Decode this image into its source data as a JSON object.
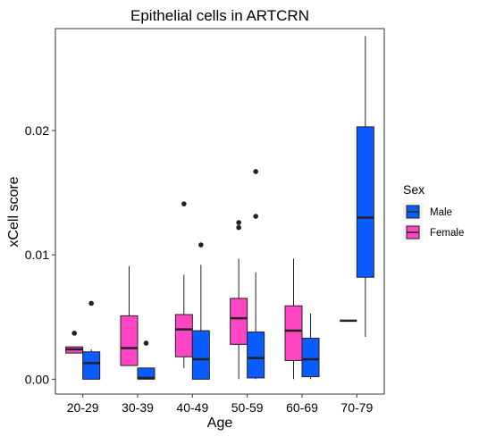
{
  "chart_data": {
    "type": "boxplot",
    "title": "Epithelial cells in ARTCRN",
    "xlabel": "Age",
    "ylabel": "xCell score",
    "categories": [
      "20-29",
      "30-39",
      "40-49",
      "50-59",
      "60-69",
      "70-79"
    ],
    "ylim": [
      -0.0012,
      0.0282
    ],
    "yticks": [
      0.0,
      0.01,
      0.02
    ],
    "ytick_labels": [
      "0.00",
      "0.01",
      "0.02"
    ],
    "grid": false,
    "legend": {
      "title": "Sex",
      "position": "right",
      "entries": [
        {
          "name": "Male",
          "color": "#0a5cff"
        },
        {
          "name": "Female",
          "color": "#ff44c4"
        }
      ]
    },
    "series": [
      {
        "name": "Female",
        "color": "#ff44c4",
        "boxes": [
          {
            "category": "20-29",
            "min": 0.0021,
            "q1": 0.0021,
            "median": 0.0024,
            "q3": 0.0026,
            "max": 0.0026,
            "outliers": [
              0.0037
            ]
          },
          {
            "category": "30-39",
            "min": 0.0011,
            "q1": 0.0011,
            "median": 0.0025,
            "q3": 0.0051,
            "max": 0.0091,
            "outliers": []
          },
          {
            "category": "40-49",
            "min": 0.0009,
            "q1": 0.0018,
            "median": 0.004,
            "q3": 0.0052,
            "max": 0.0084,
            "outliers": [
              0.0141
            ]
          },
          {
            "category": "50-59",
            "min": 0.0,
            "q1": 0.0028,
            "median": 0.0049,
            "q3": 0.0065,
            "max": 0.0097,
            "outliers": [
              0.0122,
              0.0126
            ]
          },
          {
            "category": "60-69",
            "min": 0.0,
            "q1": 0.0015,
            "median": 0.0039,
            "q3": 0.0059,
            "max": 0.0097,
            "outliers": []
          }
        ]
      },
      {
        "name": "Male",
        "color": "#0a5cff",
        "boxes": [
          {
            "category": "20-29",
            "min": 0.0,
            "q1": 0.0,
            "median": 0.0013,
            "q3": 0.0022,
            "max": 0.0024,
            "outliers": [
              0.0061
            ]
          },
          {
            "category": "30-39",
            "min": 0.0,
            "q1": 0.0,
            "median": 0.0001,
            "q3": 0.0009,
            "max": 0.0009,
            "outliers": [
              0.0029
            ]
          },
          {
            "category": "40-49",
            "min": 0.0,
            "q1": 0.0,
            "median": 0.0016,
            "q3": 0.0039,
            "max": 0.0092,
            "outliers": [
              0.0108
            ]
          },
          {
            "category": "50-59",
            "min": 0.0,
            "q1": 0.0001,
            "median": 0.0017,
            "q3": 0.0038,
            "max": 0.0086,
            "outliers": [
              0.0131,
              0.0167
            ]
          },
          {
            "category": "60-69",
            "min": 0.0,
            "q1": 0.0002,
            "median": 0.0016,
            "q3": 0.0033,
            "max": 0.0053,
            "outliers": []
          },
          {
            "category": "70-79",
            "min": 0.0034,
            "q1": 0.0082,
            "median": 0.013,
            "q3": 0.0203,
            "max": 0.0276,
            "outliers": []
          }
        ]
      }
    ],
    "single_groups": [
      {
        "category": "70-79",
        "series": "Female",
        "value": 0.0047
      }
    ]
  }
}
